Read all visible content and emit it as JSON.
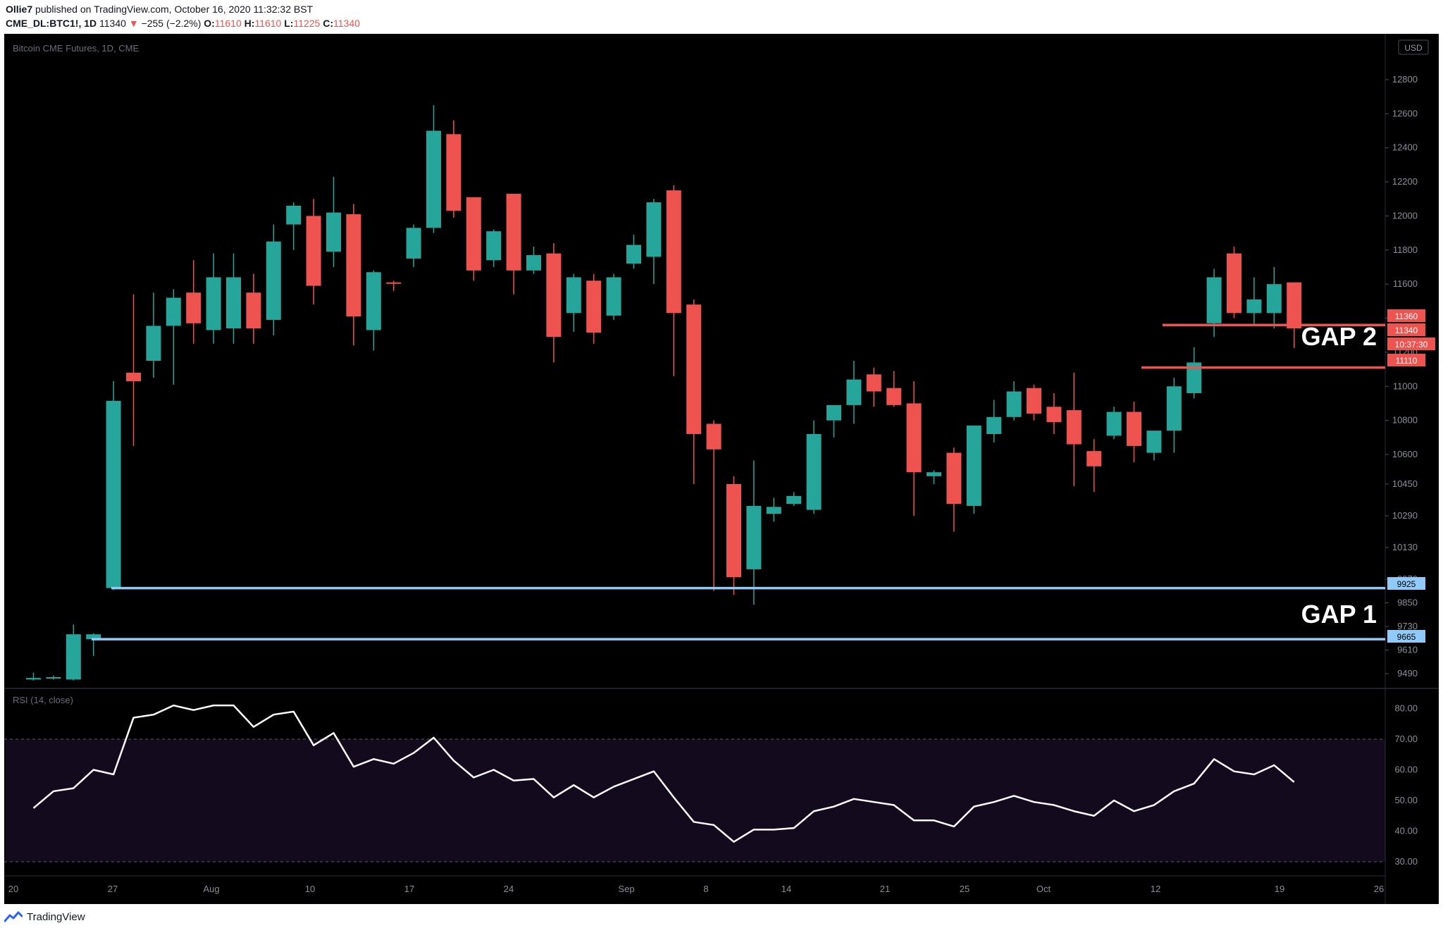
{
  "header": {
    "author": "Ollie7",
    "published_text": "published on TradingView.com, October 16, 2020 11:32:32 BST",
    "symbol": "CME_DL:BTC1!, 1D",
    "last": "11340",
    "change": "−255 (−2.2%)",
    "o_label": "O:",
    "o_value": "11610",
    "h_label": "H:",
    "h_value": "11610",
    "l_label": "L:",
    "l_value": "11225",
    "c_label": "C:",
    "c_value": "11340"
  },
  "footer": {
    "brand": "TradingView"
  },
  "colors": {
    "up": "#26a69a",
    "down": "#ef5350",
    "support": "#90caf9",
    "resistance": "#ef5350",
    "rsi_zone": "#140a1e"
  },
  "chart_data": {
    "type": "candlestick",
    "title": "Bitcoin CME Futures, 1D, CME",
    "currency": "USD",
    "y_ticks": [
      9490,
      9610,
      9730,
      9850,
      9970,
      10130,
      10290,
      10450,
      10600,
      10800,
      11000,
      11200,
      11400,
      11600,
      11800,
      12000,
      12200,
      12400,
      12600,
      12800
    ],
    "x_ticks": [
      "20",
      "27",
      "Aug",
      "10",
      "17",
      "24",
      "Sep",
      "8",
      "14",
      "21",
      "25",
      "Oct",
      "12",
      "19",
      "26"
    ],
    "candles": [
      {
        "o": 9460,
        "h": 9495,
        "l": 9455,
        "c": 9468
      },
      {
        "o": 9470,
        "h": 9480,
        "l": 9460,
        "c": 9472
      },
      {
        "o": 9460,
        "h": 9740,
        "l": 9455,
        "c": 9690
      },
      {
        "o": 9665,
        "h": 9695,
        "l": 9580,
        "c": 9690
      },
      {
        "o": 9925,
        "h": 11030,
        "l": 9915,
        "c": 10915
      },
      {
        "o": 11080,
        "h": 11540,
        "l": 10650,
        "c": 11030
      },
      {
        "o": 11150,
        "h": 11550,
        "l": 11050,
        "c": 11355
      },
      {
        "o": 11355,
        "h": 11570,
        "l": 11010,
        "c": 11520
      },
      {
        "o": 11550,
        "h": 11740,
        "l": 11250,
        "c": 11370
      },
      {
        "o": 11330,
        "h": 11780,
        "l": 11250,
        "c": 11640
      },
      {
        "o": 11340,
        "h": 11780,
        "l": 11250,
        "c": 11640
      },
      {
        "o": 11550,
        "h": 11660,
        "l": 11250,
        "c": 11340
      },
      {
        "o": 11390,
        "h": 11950,
        "l": 11300,
        "c": 11850
      },
      {
        "o": 11950,
        "h": 12080,
        "l": 11800,
        "c": 12060
      },
      {
        "o": 12000,
        "h": 12100,
        "l": 11480,
        "c": 11590
      },
      {
        "o": 11790,
        "h": 12230,
        "l": 11700,
        "c": 12020
      },
      {
        "o": 12010,
        "h": 12070,
        "l": 11240,
        "c": 11410
      },
      {
        "o": 11330,
        "h": 11680,
        "l": 11210,
        "c": 11670
      },
      {
        "o": 11610,
        "h": 11620,
        "l": 11560,
        "c": 11605
      },
      {
        "o": 11750,
        "h": 11950,
        "l": 11700,
        "c": 11930
      },
      {
        "o": 11930,
        "h": 12650,
        "l": 11900,
        "c": 12500
      },
      {
        "o": 12480,
        "h": 12560,
        "l": 11990,
        "c": 12030
      },
      {
        "o": 12110,
        "h": 12110,
        "l": 11620,
        "c": 11680
      },
      {
        "o": 11740,
        "h": 11920,
        "l": 11700,
        "c": 11910
      },
      {
        "o": 12130,
        "h": 12130,
        "l": 11540,
        "c": 11680
      },
      {
        "o": 11680,
        "h": 11820,
        "l": 11660,
        "c": 11770
      },
      {
        "o": 11780,
        "h": 11840,
        "l": 11140,
        "c": 11290
      },
      {
        "o": 11430,
        "h": 11660,
        "l": 11320,
        "c": 11640
      },
      {
        "o": 11620,
        "h": 11660,
        "l": 11250,
        "c": 11315
      },
      {
        "o": 11415,
        "h": 11660,
        "l": 11390,
        "c": 11640
      },
      {
        "o": 11720,
        "h": 11890,
        "l": 11690,
        "c": 11830
      },
      {
        "o": 11760,
        "h": 12100,
        "l": 11600,
        "c": 12080
      },
      {
        "o": 12150,
        "h": 12180,
        "l": 11060,
        "c": 11430
      },
      {
        "o": 11480,
        "h": 11510,
        "l": 10450,
        "c": 10720
      },
      {
        "o": 10780,
        "h": 10800,
        "l": 9910,
        "c": 10630
      },
      {
        "o": 10450,
        "h": 10490,
        "l": 9890,
        "c": 9980
      },
      {
        "o": 10020,
        "h": 10570,
        "l": 9840,
        "c": 10340
      },
      {
        "o": 10300,
        "h": 10380,
        "l": 10260,
        "c": 10335
      },
      {
        "o": 10350,
        "h": 10410,
        "l": 10340,
        "c": 10390
      },
      {
        "o": 10320,
        "h": 10800,
        "l": 10300,
        "c": 10720
      },
      {
        "o": 10800,
        "h": 10880,
        "l": 10700,
        "c": 10890
      },
      {
        "o": 10890,
        "h": 11150,
        "l": 10780,
        "c": 11040
      },
      {
        "o": 11070,
        "h": 11110,
        "l": 10880,
        "c": 10970
      },
      {
        "o": 10990,
        "h": 11090,
        "l": 10880,
        "c": 10890
      },
      {
        "o": 10900,
        "h": 11030,
        "l": 10290,
        "c": 10510
      },
      {
        "o": 10490,
        "h": 10520,
        "l": 10450,
        "c": 10510
      },
      {
        "o": 10610,
        "h": 10640,
        "l": 10210,
        "c": 10350
      },
      {
        "o": 10340,
        "h": 10750,
        "l": 10300,
        "c": 10770
      },
      {
        "o": 10720,
        "h": 10920,
        "l": 10670,
        "c": 10820
      },
      {
        "o": 10820,
        "h": 11030,
        "l": 10800,
        "c": 10970
      },
      {
        "o": 10990,
        "h": 11010,
        "l": 10800,
        "c": 10840
      },
      {
        "o": 10880,
        "h": 10960,
        "l": 10720,
        "c": 10790
      },
      {
        "o": 10860,
        "h": 11080,
        "l": 10440,
        "c": 10660
      },
      {
        "o": 10620,
        "h": 10690,
        "l": 10410,
        "c": 10540
      },
      {
        "o": 10710,
        "h": 10880,
        "l": 10690,
        "c": 10850
      },
      {
        "o": 10850,
        "h": 10910,
        "l": 10560,
        "c": 10650
      },
      {
        "o": 10610,
        "h": 10740,
        "l": 10570,
        "c": 10740
      },
      {
        "o": 10740,
        "h": 11050,
        "l": 10610,
        "c": 11000
      },
      {
        "o": 10960,
        "h": 11230,
        "l": 10930,
        "c": 11140
      },
      {
        "o": 11370,
        "h": 11690,
        "l": 11290,
        "c": 11640
      },
      {
        "o": 11780,
        "h": 11820,
        "l": 11400,
        "c": 11430
      },
      {
        "o": 11430,
        "h": 11640,
        "l": 11360,
        "c": 11510
      },
      {
        "o": 11430,
        "h": 11700,
        "l": 11340,
        "c": 11600
      },
      {
        "o": 11610,
        "h": 11610,
        "l": 11225,
        "c": 11340
      }
    ],
    "price_labels": {
      "p11360": "11360",
      "p11340": "11340",
      "countdown": "10:37:30",
      "p11110": "11110",
      "p9925": "9925",
      "p9665": "9665"
    },
    "levels": [
      {
        "price": 9925,
        "kind": "support"
      },
      {
        "price": 9665,
        "kind": "support"
      },
      {
        "price": 11360,
        "kind": "resistance"
      },
      {
        "price": 11110,
        "kind": "resistance"
      }
    ],
    "annotations": [
      "GAP 2",
      "GAP 1"
    ],
    "rsi": {
      "label": "RSI (14, close)",
      "ticks": [
        "80.00",
        "70.00",
        "60.00",
        "50.00",
        "40.00",
        "30.00"
      ],
      "overbought": 70,
      "oversold": 30,
      "values": [
        47.5,
        53,
        54,
        60,
        58.5,
        77,
        78,
        81,
        79.5,
        81,
        81,
        74,
        78,
        79,
        68,
        72,
        61,
        63.5,
        62,
        65.5,
        70.5,
        63,
        57.5,
        60,
        56.5,
        57,
        51,
        55,
        51,
        54.5,
        57,
        59.5,
        51,
        43,
        42,
        36.5,
        40.5,
        40.5,
        41,
        46.5,
        48,
        50.5,
        49.5,
        48.5,
        43.5,
        43.5,
        41.5,
        48,
        49.5,
        51.5,
        49.5,
        48.5,
        46.5,
        45,
        50,
        46.5,
        48.5,
        53,
        55.5,
        63.5,
        59.5,
        58.5,
        61.5,
        56
      ]
    }
  }
}
